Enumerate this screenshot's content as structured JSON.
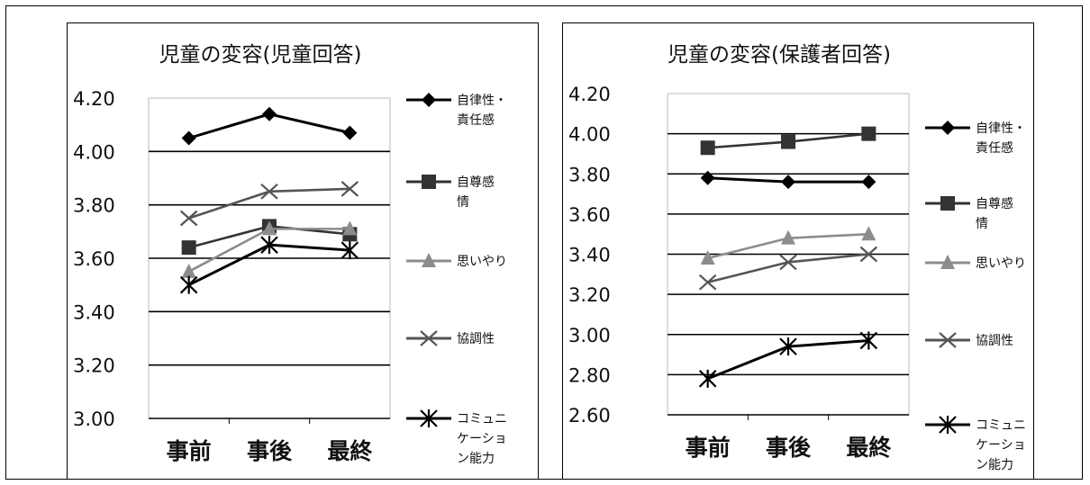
{
  "chart_data": [
    {
      "type": "line",
      "title": "児童の変容(児童回答)",
      "categories": [
        "事前",
        "事後",
        "最終"
      ],
      "ylim": [
        3.0,
        4.2
      ],
      "yticks": [
        "3.00",
        "3.20",
        "3.40",
        "3.60",
        "3.80",
        "4.00",
        "4.20"
      ],
      "grid": true,
      "legend": "right",
      "series": [
        {
          "name": "自律性・責任感",
          "legend_lines": [
            "自律性・",
            "責任感"
          ],
          "values": [
            4.05,
            4.14,
            4.07
          ],
          "color": "#000000",
          "marker": "diamond"
        },
        {
          "name": "自尊感情",
          "legend_lines": [
            "自尊感",
            "情"
          ],
          "values": [
            3.64,
            3.72,
            3.69
          ],
          "color": "#333333",
          "marker": "square"
        },
        {
          "name": "思いやり",
          "legend_lines": [
            "思いやり"
          ],
          "values": [
            3.55,
            3.71,
            3.71
          ],
          "color": "#8c8c8c",
          "marker": "triangle"
        },
        {
          "name": "協調性",
          "legend_lines": [
            "協調性"
          ],
          "values": [
            3.75,
            3.85,
            3.86
          ],
          "color": "#555555",
          "marker": "x"
        },
        {
          "name": "コミュニケーション能力",
          "legend_lines": [
            "コミュニ",
            "ケーショ",
            "ン能力"
          ],
          "values": [
            3.5,
            3.65,
            3.63
          ],
          "color": "#000000",
          "marker": "asterisk"
        }
      ]
    },
    {
      "type": "line",
      "title": "児童の変容(保護者回答)",
      "categories": [
        "事前",
        "事後",
        "最終"
      ],
      "ylim": [
        2.6,
        4.2
      ],
      "yticks": [
        "2.60",
        "2.80",
        "3.00",
        "3.20",
        "3.40",
        "3.60",
        "3.80",
        "4.00",
        "4.20"
      ],
      "grid": true,
      "legend": "right",
      "series": [
        {
          "name": "自律性・責任感",
          "legend_lines": [
            "自律性・",
            "責任感"
          ],
          "values": [
            3.78,
            3.76,
            3.76
          ],
          "color": "#000000",
          "marker": "diamond"
        },
        {
          "name": "自尊感情",
          "legend_lines": [
            "自尊感",
            "情"
          ],
          "values": [
            3.93,
            3.96,
            4.0
          ],
          "color": "#333333",
          "marker": "square"
        },
        {
          "name": "思いやり",
          "legend_lines": [
            "思いやり"
          ],
          "values": [
            3.38,
            3.48,
            3.5
          ],
          "color": "#8c8c8c",
          "marker": "triangle"
        },
        {
          "name": "協調性",
          "legend_lines": [
            "協調性"
          ],
          "values": [
            3.26,
            3.36,
            3.4
          ],
          "color": "#555555",
          "marker": "x"
        },
        {
          "name": "コミュニケーション能力",
          "legend_lines": [
            "コミュニ",
            "ケーショ",
            "ン能力"
          ],
          "values": [
            2.78,
            2.94,
            2.97
          ],
          "color": "#000000",
          "marker": "asterisk"
        }
      ]
    }
  ]
}
